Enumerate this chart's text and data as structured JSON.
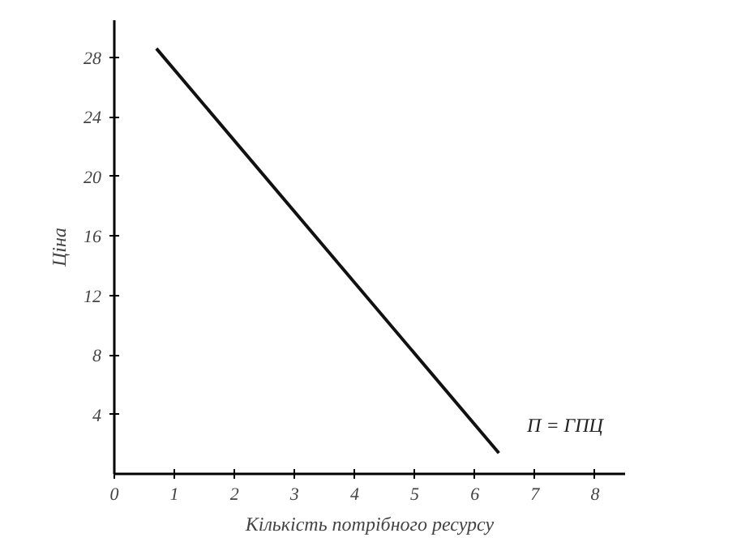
{
  "chart_data": {
    "type": "line",
    "xlabel": "Кількість потрібного ресурсу",
    "ylabel": "Ціна",
    "x": [
      0.7,
      6.4
    ],
    "series": [
      {
        "color": "#111111",
        "values": [
          28.6,
          1.4
        ]
      }
    ],
    "annotations": [
      "П = ГПЦ"
    ],
    "xlim": [
      0,
      8.5
    ],
    "ylim": [
      0,
      30.5
    ],
    "xticks": [
      0,
      1,
      2,
      3,
      4,
      5,
      6,
      7,
      8
    ],
    "yticks": [
      4,
      8,
      12,
      16,
      20,
      24,
      28
    ],
    "grid": false,
    "marker": "none",
    "line_style": "solid"
  }
}
